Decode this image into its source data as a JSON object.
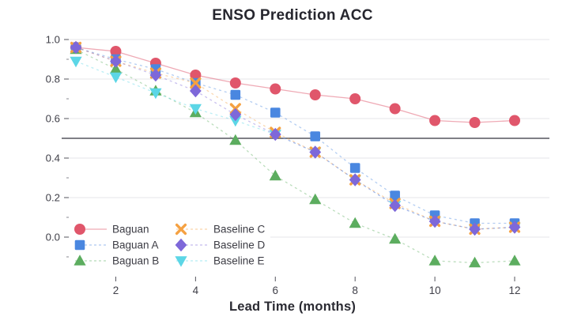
{
  "chart_data": {
    "type": "line",
    "title": "ENSO Prediction ACC",
    "xlabel": "Lead Time (months)",
    "ylabel": "",
    "x": [
      1,
      2,
      3,
      4,
      5,
      6,
      7,
      8,
      9,
      10,
      11,
      12
    ],
    "x_tick_labels": [
      "2",
      "4",
      "6",
      "8",
      "10",
      "12"
    ],
    "y_tick_labels": [
      "1.0",
      "0.8",
      "0.6",
      "0.4",
      "0.2",
      "0.0"
    ],
    "y_minor_ticks": [
      0.9,
      0.7,
      0.3,
      0.1,
      -0.1
    ],
    "ylim": [
      -0.22,
      1.04
    ],
    "reference_line_y": 0.5,
    "grid": true,
    "legend_position": "bottom-left",
    "series": [
      {
        "name": "Baguan",
        "color": "#e0566b",
        "marker": "circle",
        "line": "solid",
        "values": [
          0.96,
          0.94,
          0.88,
          0.82,
          0.78,
          0.75,
          0.72,
          0.7,
          0.65,
          0.59,
          0.58,
          0.59
        ]
      },
      {
        "name": "Baguan A",
        "color": "#4a87e0",
        "marker": "square",
        "line": "dashed",
        "values": [
          0.96,
          0.9,
          0.85,
          0.78,
          0.72,
          0.63,
          0.51,
          0.35,
          0.21,
          0.11,
          0.07,
          0.07
        ]
      },
      {
        "name": "Baguan B",
        "color": "#5cad5f",
        "marker": "triangle-up",
        "line": "dashed",
        "values": [
          0.95,
          0.85,
          0.74,
          0.63,
          0.49,
          0.31,
          0.19,
          0.07,
          -0.01,
          -0.12,
          -0.13,
          -0.12
        ]
      },
      {
        "name": "Baseline C",
        "color": "#f5a142",
        "marker": "x",
        "line": "dashed",
        "values": [
          0.96,
          0.89,
          0.83,
          0.78,
          0.65,
          0.53,
          0.43,
          0.29,
          0.17,
          0.08,
          0.04,
          0.05
        ]
      },
      {
        "name": "Baseline D",
        "color": "#7e68d9",
        "marker": "diamond",
        "line": "dashed",
        "values": [
          0.96,
          0.89,
          0.82,
          0.74,
          0.62,
          0.52,
          0.43,
          0.29,
          0.16,
          0.08,
          0.04,
          0.05
        ]
      },
      {
        "name": "Baseline E",
        "color": "#5cd6e6",
        "marker": "triangle-down",
        "line": "dashed",
        "values": [
          0.89,
          0.81,
          0.73,
          0.65,
          0.59,
          0.52,
          0.43,
          0.29,
          0.16,
          0.08,
          0.04,
          0.05
        ]
      }
    ],
    "draw_order": [
      "Baguan",
      "Baguan B",
      "Baseline E",
      "Baguan A",
      "Baseline C",
      "Baseline D"
    ],
    "colors": {
      "grid": "#e5e5ea",
      "reference_line": "#55555e",
      "tick_label": "#3f3f48",
      "legend_text": "#3c3c44",
      "title_text": "#26262e"
    }
  }
}
